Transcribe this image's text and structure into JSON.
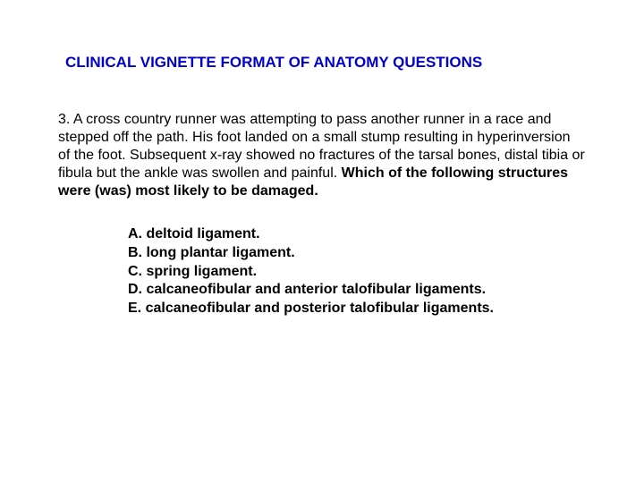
{
  "colors": {
    "title": "#0000cc",
    "body_text": "#000000",
    "background": "#ffffff"
  },
  "typography": {
    "font_family": "Arial, Helvetica, sans-serif",
    "title_fontsize": 17,
    "body_fontsize": 16,
    "title_weight": "bold",
    "option_weight": "bold"
  },
  "title": "CLINICAL VIGNETTE FORMAT OF ANATOMY QUESTIONS",
  "question": {
    "number": "3.",
    "stem_plain": "A cross country runner was attempting to pass another runner in a race and stepped off the path.  His foot landed on a small stump resulting in hyperinversion of the foot.  Subsequent x-ray showed no fractures of the tarsal bones, distal tibia or fibula but the ankle was swollen and painful.",
    "stem_emph": "Which of the following structures were (was) most likely to be damaged."
  },
  "options": [
    {
      "letter": "A.",
      "text": "deltoid ligament."
    },
    {
      "letter": "B.",
      "text": "long plantar ligament."
    },
    {
      "letter": "C.",
      "text": "spring ligament."
    },
    {
      "letter": "D.",
      "text": "calcaneofibular and anterior talofibular ligaments."
    },
    {
      "letter": "E.",
      "text": "calcaneofibular and posterior talofibular ligaments."
    }
  ]
}
